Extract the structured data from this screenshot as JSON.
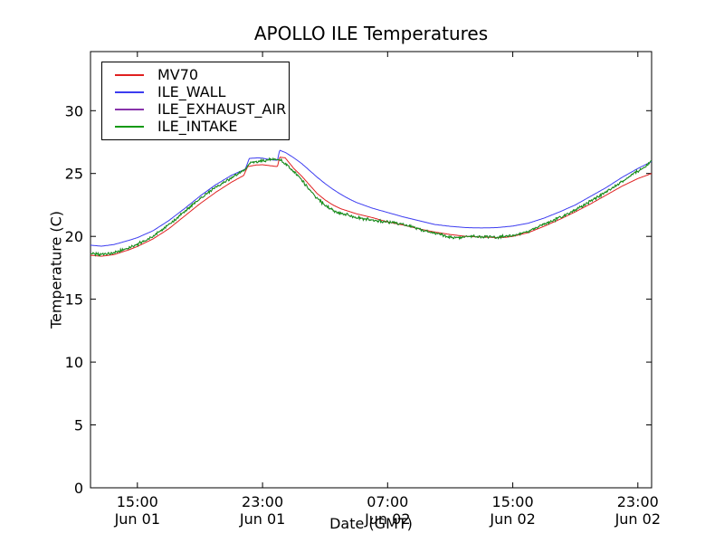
{
  "chart_data": {
    "type": "line",
    "title": "APOLLO ILE Temperatures",
    "xlabel": "Date (GMT)",
    "ylabel": "Temperature (C)",
    "x_start": "Jun 01 12:00",
    "x_end": "Jun 02 23:52",
    "xlim": [
      0,
      35.88
    ],
    "ylim": [
      0,
      34.7
    ],
    "grid": false,
    "legend_position": "upper left",
    "x_ticks": [
      {
        "hours": 3,
        "time": "15:00",
        "date": "Jun 01"
      },
      {
        "hours": 11,
        "time": "23:00",
        "date": "Jun 01"
      },
      {
        "hours": 19,
        "time": "07:00",
        "date": "Jun 02"
      },
      {
        "hours": 27,
        "time": "15:00",
        "date": "Jun 02"
      },
      {
        "hours": 35,
        "time": "23:00",
        "date": "Jun 02"
      }
    ],
    "y_ticks": [
      0,
      5,
      10,
      15,
      20,
      25,
      30
    ],
    "series": [
      {
        "name": "MV70",
        "color": "#e02020",
        "noise": 0,
        "points": [
          [
            0,
            18.5
          ],
          [
            0.7,
            18.42
          ],
          [
            1.5,
            18.55
          ],
          [
            2.5,
            18.95
          ],
          [
            3,
            19.2
          ],
          [
            4,
            19.8
          ],
          [
            5,
            20.6
          ],
          [
            6,
            21.6
          ],
          [
            7,
            22.6
          ],
          [
            8,
            23.5
          ],
          [
            9,
            24.3
          ],
          [
            9.8,
            24.85
          ],
          [
            10.05,
            25.55
          ],
          [
            10.6,
            25.68
          ],
          [
            11,
            25.7
          ],
          [
            11.5,
            25.62
          ],
          [
            11.95,
            25.55
          ],
          [
            12.1,
            26.3
          ],
          [
            12.45,
            26.25
          ],
          [
            13,
            25.4
          ],
          [
            13.5,
            24.8
          ],
          [
            14,
            24.1
          ],
          [
            14.5,
            23.4
          ],
          [
            15,
            22.9
          ],
          [
            15.5,
            22.5
          ],
          [
            16,
            22.2
          ],
          [
            17,
            21.8
          ],
          [
            18,
            21.5
          ],
          [
            19,
            21.15
          ],
          [
            20,
            20.9
          ],
          [
            21,
            20.6
          ],
          [
            22,
            20.35
          ],
          [
            23,
            20.15
          ],
          [
            24,
            20.0
          ],
          [
            25,
            19.95
          ],
          [
            26,
            19.9
          ],
          [
            26.5,
            19.92
          ],
          [
            27,
            20.0
          ],
          [
            28,
            20.3
          ],
          [
            29,
            20.8
          ],
          [
            30,
            21.35
          ],
          [
            31,
            21.95
          ],
          [
            32,
            22.6
          ],
          [
            33,
            23.3
          ],
          [
            34,
            24.0
          ],
          [
            35,
            24.6
          ],
          [
            35.88,
            25.0
          ]
        ]
      },
      {
        "name": "ILE_WALL",
        "color": "#3c3cf0",
        "noise": 0,
        "points": [
          [
            0,
            19.3
          ],
          [
            0.7,
            19.22
          ],
          [
            1.5,
            19.35
          ],
          [
            2.5,
            19.7
          ],
          [
            3,
            19.9
          ],
          [
            4,
            20.45
          ],
          [
            5,
            21.25
          ],
          [
            6,
            22.2
          ],
          [
            7,
            23.2
          ],
          [
            8,
            24.1
          ],
          [
            9,
            24.85
          ],
          [
            9.9,
            25.35
          ],
          [
            10.15,
            26.2
          ],
          [
            10.7,
            26.25
          ],
          [
            11,
            26.22
          ],
          [
            11.5,
            26.1
          ],
          [
            11.95,
            26.05
          ],
          [
            12.1,
            26.85
          ],
          [
            12.5,
            26.65
          ],
          [
            13,
            26.25
          ],
          [
            13.5,
            25.8
          ],
          [
            14,
            25.25
          ],
          [
            14.5,
            24.7
          ],
          [
            15,
            24.2
          ],
          [
            15.5,
            23.75
          ],
          [
            16,
            23.35
          ],
          [
            16.5,
            23.0
          ],
          [
            17,
            22.7
          ],
          [
            18,
            22.25
          ],
          [
            19,
            21.9
          ],
          [
            20,
            21.55
          ],
          [
            21,
            21.25
          ],
          [
            22,
            20.95
          ],
          [
            23,
            20.8
          ],
          [
            24,
            20.7
          ],
          [
            25,
            20.67
          ],
          [
            26,
            20.7
          ],
          [
            27,
            20.82
          ],
          [
            28,
            21.05
          ],
          [
            29,
            21.45
          ],
          [
            30,
            21.95
          ],
          [
            31,
            22.5
          ],
          [
            32,
            23.2
          ],
          [
            33,
            23.9
          ],
          [
            34,
            24.7
          ],
          [
            35,
            25.4
          ],
          [
            35.88,
            25.95
          ]
        ]
      },
      {
        "name": "ILE_EXHAUST_AIR",
        "color": "#8833aa",
        "noise": 0.09,
        "points": [
          [
            0,
            18.62
          ],
          [
            0.7,
            18.55
          ],
          [
            1.5,
            18.7
          ],
          [
            2.5,
            19.1
          ],
          [
            3,
            19.35
          ],
          [
            4,
            20.0
          ],
          [
            5,
            20.9
          ],
          [
            6,
            21.95
          ],
          [
            7,
            23.0
          ],
          [
            8,
            23.9
          ],
          [
            9,
            24.65
          ],
          [
            9.9,
            25.3
          ],
          [
            10.2,
            25.85
          ],
          [
            11,
            26.0
          ],
          [
            11.7,
            26.15
          ],
          [
            12.2,
            26.05
          ],
          [
            12.6,
            25.6
          ],
          [
            13,
            25.15
          ],
          [
            13.5,
            24.5
          ],
          [
            14,
            23.7
          ],
          [
            14.5,
            23.0
          ],
          [
            15,
            22.5
          ],
          [
            15.5,
            22.1
          ],
          [
            16,
            21.85
          ],
          [
            17,
            21.5
          ],
          [
            18,
            21.3
          ],
          [
            19,
            21.15
          ],
          [
            20,
            20.95
          ],
          [
            21,
            20.6
          ],
          [
            22,
            20.25
          ],
          [
            23,
            19.95
          ],
          [
            23.5,
            19.9
          ],
          [
            24,
            20.0
          ],
          [
            25,
            19.97
          ],
          [
            26,
            19.93
          ],
          [
            27,
            20.05
          ],
          [
            28,
            20.4
          ],
          [
            29,
            20.95
          ],
          [
            30,
            21.5
          ],
          [
            31,
            22.1
          ],
          [
            32,
            22.8
          ],
          [
            33,
            23.55
          ],
          [
            34,
            24.35
          ],
          [
            35,
            25.2
          ],
          [
            35.88,
            25.95
          ]
        ]
      },
      {
        "name": "ILE_INTAKE",
        "color": "#119911",
        "noise": 0.09,
        "points": [
          [
            0,
            18.62
          ],
          [
            0.7,
            18.55
          ],
          [
            1.5,
            18.7
          ],
          [
            2.5,
            19.1
          ],
          [
            3,
            19.35
          ],
          [
            4,
            20.0
          ],
          [
            5,
            20.9
          ],
          [
            6,
            21.95
          ],
          [
            7,
            23.0
          ],
          [
            8,
            23.9
          ],
          [
            9,
            24.65
          ],
          [
            9.9,
            25.3
          ],
          [
            10.2,
            25.85
          ],
          [
            11,
            26.0
          ],
          [
            11.7,
            26.15
          ],
          [
            12.2,
            26.05
          ],
          [
            12.6,
            25.6
          ],
          [
            13,
            25.15
          ],
          [
            13.5,
            24.5
          ],
          [
            14,
            23.7
          ],
          [
            14.5,
            23.0
          ],
          [
            15,
            22.5
          ],
          [
            15.5,
            22.1
          ],
          [
            16,
            21.85
          ],
          [
            17,
            21.5
          ],
          [
            18,
            21.3
          ],
          [
            19,
            21.15
          ],
          [
            20,
            20.95
          ],
          [
            21,
            20.6
          ],
          [
            22,
            20.25
          ],
          [
            23,
            19.95
          ],
          [
            23.5,
            19.9
          ],
          [
            24,
            20.0
          ],
          [
            25,
            19.97
          ],
          [
            26,
            19.93
          ],
          [
            27,
            20.05
          ],
          [
            28,
            20.4
          ],
          [
            29,
            20.95
          ],
          [
            30,
            21.5
          ],
          [
            31,
            22.1
          ],
          [
            32,
            22.8
          ],
          [
            33,
            23.55
          ],
          [
            34,
            24.35
          ],
          [
            35,
            25.2
          ],
          [
            35.88,
            25.95
          ]
        ]
      }
    ]
  }
}
